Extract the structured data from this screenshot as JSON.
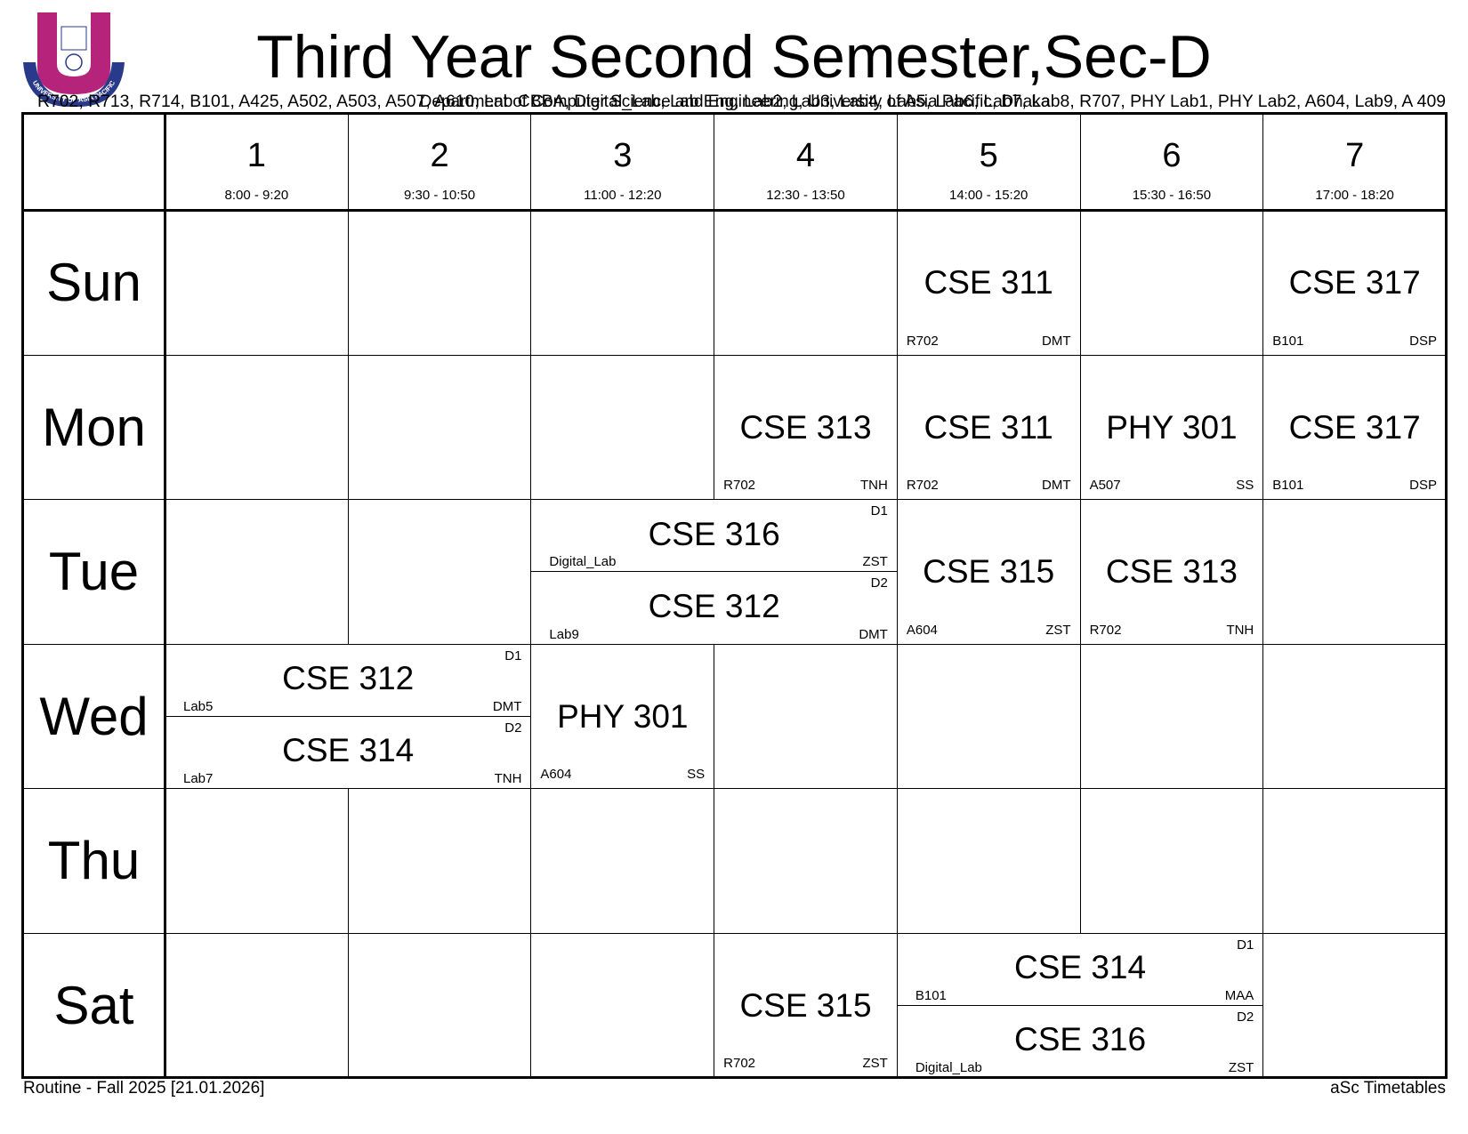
{
  "logo": {
    "abbr": "UAP",
    "name": "UNIVERSITY OF ASIA PACIFIC"
  },
  "header": {
    "title": "Third Year Second Semester,Sec-D",
    "rooms": "R702, R713, R714, B101, A425, A502, A503, A507, A610, Lab CBBA, Digital_Lab, Lab Eng, Lab2, Lab3, Lab4, Lab5, Lab6, Lab7, Lab8, R707, PHY Lab1, PHY Lab2, A604, Lab9, A 409",
    "department": "Department of Computer Science and Engineering, University of Asia Pacific, Dhaka"
  },
  "periods": [
    {
      "number": "1",
      "time": "8:00 - 9:20"
    },
    {
      "number": "2",
      "time": "9:30 - 10:50"
    },
    {
      "number": "3",
      "time": "11:00 - 12:20"
    },
    {
      "number": "4",
      "time": "12:30 - 13:50"
    },
    {
      "number": "5",
      "time": "14:00 - 15:20"
    },
    {
      "number": "6",
      "time": "15:30 - 16:50"
    },
    {
      "number": "7",
      "time": "17:00 - 18:20"
    }
  ],
  "days": [
    {
      "name": "Sun",
      "lessons": [
        {
          "periods": [
            "5"
          ],
          "subject": "CSE 311",
          "room": "R702",
          "teacher": "DMT"
        },
        {
          "periods": [
            "7"
          ],
          "subject": "CSE 317",
          "room": "B101",
          "teacher": "DSP"
        }
      ]
    },
    {
      "name": "Mon",
      "lessons": [
        {
          "periods": [
            "4"
          ],
          "subject": "CSE 313",
          "room": "R702",
          "teacher": "TNH"
        },
        {
          "periods": [
            "5"
          ],
          "subject": "CSE 311",
          "room": "R702",
          "teacher": "DMT"
        },
        {
          "periods": [
            "6"
          ],
          "subject": "PHY 301",
          "room": "A507",
          "teacher": "SS"
        },
        {
          "periods": [
            "7"
          ],
          "subject": "CSE 317",
          "room": "B101",
          "teacher": "DSP"
        }
      ]
    },
    {
      "name": "Tue",
      "lessons": [
        {
          "periods": [
            "3",
            "4"
          ],
          "group": "D1",
          "subject": "CSE 316",
          "room": "Digital_Lab",
          "teacher": "ZST"
        },
        {
          "periods": [
            "3",
            "4"
          ],
          "group": "D2",
          "subject": "CSE 312",
          "room": "Lab9",
          "teacher": "DMT"
        },
        {
          "periods": [
            "5"
          ],
          "subject": "CSE 315",
          "room": "A604",
          "teacher": "ZST"
        },
        {
          "periods": [
            "6"
          ],
          "subject": "CSE 313",
          "room": "R702",
          "teacher": "TNH"
        }
      ]
    },
    {
      "name": "Wed",
      "lessons": [
        {
          "periods": [
            "1",
            "2"
          ],
          "group": "D1",
          "subject": "CSE 312",
          "room": "Lab5",
          "teacher": "DMT"
        },
        {
          "periods": [
            "1",
            "2"
          ],
          "group": "D2",
          "subject": "CSE 314",
          "room": "Lab7",
          "teacher": "TNH"
        },
        {
          "periods": [
            "3"
          ],
          "subject": "PHY 301",
          "room": "A604",
          "teacher": "SS"
        }
      ]
    },
    {
      "name": "Thu",
      "lessons": []
    },
    {
      "name": "Sat",
      "lessons": [
        {
          "periods": [
            "4"
          ],
          "subject": "CSE 315",
          "room": "R702",
          "teacher": "ZST"
        },
        {
          "periods": [
            "5",
            "6"
          ],
          "group": "D1",
          "subject": "CSE 314",
          "room": "B101",
          "teacher": "MAA"
        },
        {
          "periods": [
            "5",
            "6"
          ],
          "group": "D2",
          "subject": "CSE 316",
          "room": "Digital_Lab",
          "teacher": "ZST"
        }
      ]
    }
  ],
  "footer": {
    "left": "Routine - Fall 2025 [21.01.2026]",
    "right": "aSc Timetables"
  }
}
